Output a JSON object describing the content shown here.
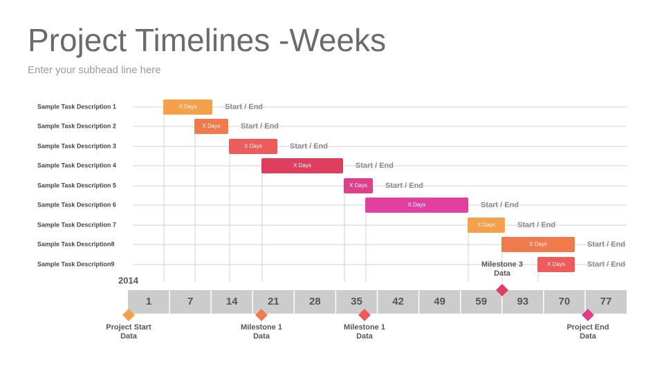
{
  "header": {
    "title": "Project Timelines -Weeks",
    "subtitle": "Enter your subhead line here"
  },
  "tasks": [
    {
      "label": "Sample Task Description 1",
      "bar_label": "X Days",
      "note": "Start / End"
    },
    {
      "label": "Sample Task Description 2",
      "bar_label": "X Days",
      "note": "Start / End"
    },
    {
      "label": "Sample Task Description 3",
      "bar_label": "X Days",
      "note": "Start / End"
    },
    {
      "label": "Sample Task Description 4",
      "bar_label": "X Days",
      "note": "Start / End"
    },
    {
      "label": "Sample Task Description 5",
      "bar_label": "X Days",
      "note": "Start / End"
    },
    {
      "label": "Sample Task Description 6",
      "bar_label": "X Days",
      "note": "Start / End"
    },
    {
      "label": "Sample Task Description 7",
      "bar_label": "X Days",
      "note": "Start / End"
    },
    {
      "label": "Sample Task Description8",
      "bar_label": "X Days",
      "note": "Start / End"
    },
    {
      "label": "Sample Task Description9",
      "bar_label": "X Days",
      "note": "Start / End"
    }
  ],
  "timeline": {
    "year": "2014",
    "weeks": [
      "1",
      "7",
      "14",
      "21",
      "28",
      "35",
      "42",
      "49",
      "59",
      "93",
      "70",
      "77"
    ]
  },
  "milestones": [
    {
      "lines": [
        "Project Start",
        "Data"
      ]
    },
    {
      "lines": [
        "Milestone 1",
        "Data"
      ]
    },
    {
      "lines": [
        "Milestone 1",
        "Data"
      ]
    },
    {
      "lines": [
        "Milestone 3",
        "Data"
      ]
    },
    {
      "lines": [
        "Project End",
        "Data"
      ]
    }
  ]
}
